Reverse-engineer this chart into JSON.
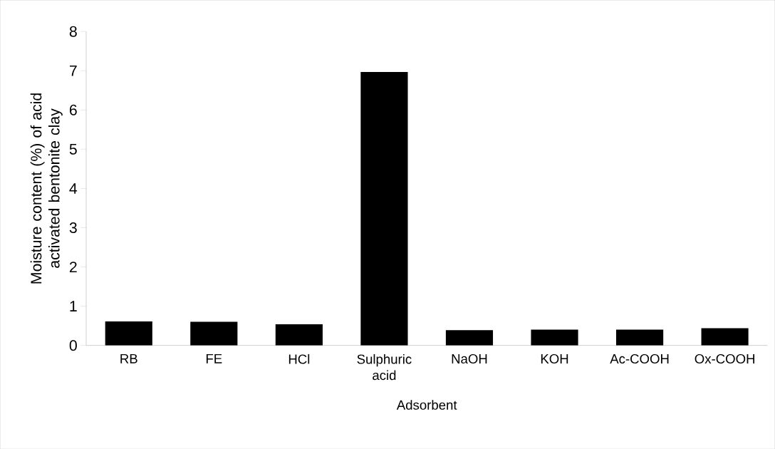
{
  "chart_data": {
    "type": "bar",
    "xlabel": "Adsorbent",
    "ylabel": "Moisture content (%) of acid activated bentonite clay",
    "categories": [
      "RB",
      "FE",
      "HCl",
      "Sulphuric acid",
      "NaOH",
      "KOH",
      "Ac-COOH",
      "Ox-COOH"
    ],
    "values": [
      0.61,
      0.6,
      0.54,
      6.97,
      0.39,
      0.4,
      0.4,
      0.44
    ],
    "color": "#000000",
    "ylim": [
      0,
      8
    ],
    "yticks": [
      0,
      1,
      2,
      3,
      4,
      5,
      6,
      7,
      8
    ],
    "grid": false
  }
}
